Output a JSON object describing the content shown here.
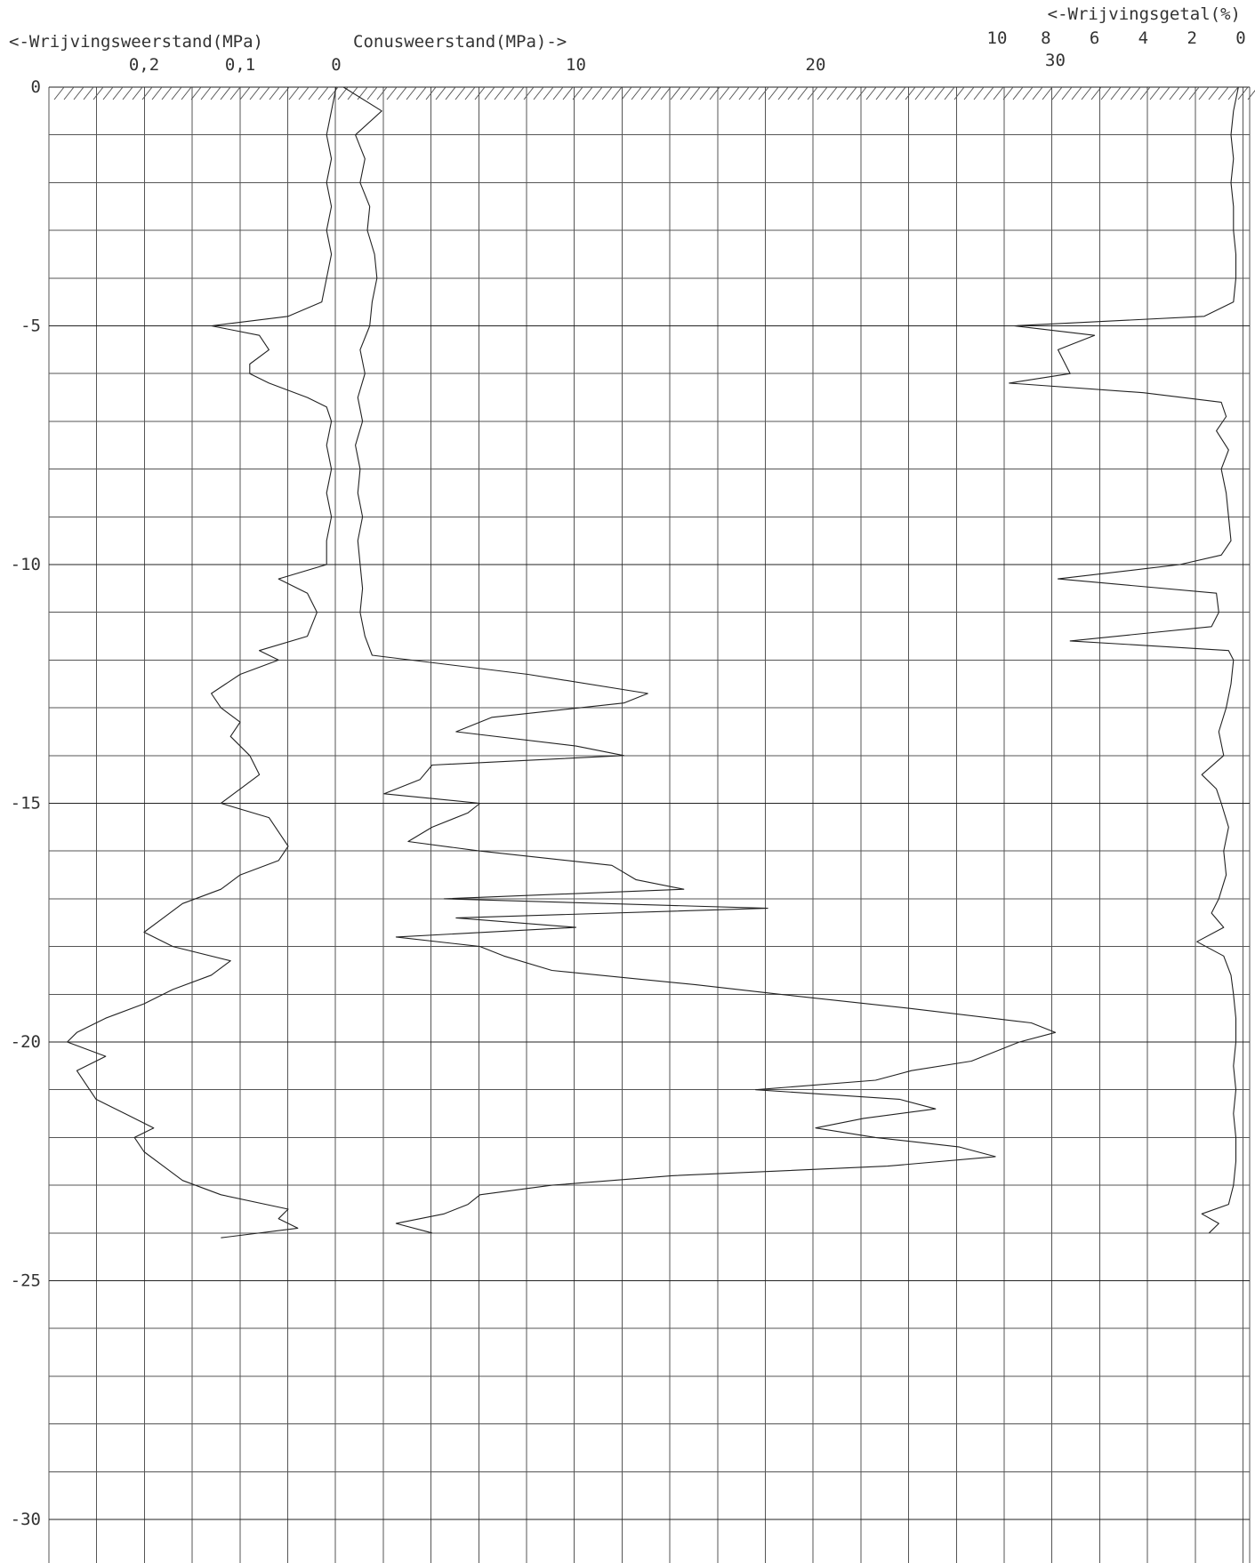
{
  "chart_data": {
    "type": "line",
    "grid": true,
    "headers": {
      "friction": "<-Wrijvingsweerstand(MPa)",
      "cone": "Conusweerstand(MPa)->",
      "ratio": "<-Wrijvingsgetal(%)"
    },
    "depth_axis": {
      "range": [
        0,
        -31
      ],
      "ticks": [
        {
          "value": 0,
          "label": "0"
        },
        {
          "value": -5,
          "label": "-5"
        },
        {
          "value": -10,
          "label": "-10"
        },
        {
          "value": -15,
          "label": "-15"
        },
        {
          "value": -20,
          "label": "-20"
        },
        {
          "value": -25,
          "label": "-25"
        },
        {
          "value": -30,
          "label": "-30"
        }
      ]
    },
    "friction_axis": {
      "range": [
        0,
        0.6
      ],
      "reversed": true,
      "ticks": [
        {
          "value": 0.2,
          "label": "0,2"
        },
        {
          "value": 0.1,
          "label": "0,1"
        },
        {
          "value": 0,
          "label": "0"
        }
      ]
    },
    "cone_axis": {
      "range": [
        0,
        38
      ],
      "ticks": [
        {
          "value": 10,
          "label": "10"
        },
        {
          "value": 20,
          "label": "20"
        },
        {
          "value": 30,
          "label": "30"
        }
      ]
    },
    "ratio_axis": {
      "range": [
        0,
        10
      ],
      "reversed": true,
      "ticks": [
        {
          "value": 10,
          "label": "10"
        },
        {
          "value": 8,
          "label": "8"
        },
        {
          "value": 6,
          "label": "6"
        },
        {
          "value": 4,
          "label": "4"
        },
        {
          "value": 2,
          "label": "2"
        },
        {
          "value": 0,
          "label": "0"
        }
      ]
    },
    "series": [
      {
        "key": "cone",
        "x_axis": "cone",
        "depth": [
          0,
          -0.5,
          -1,
          -1.5,
          -2,
          -2.5,
          -3,
          -3.5,
          -4,
          -4.5,
          -5,
          -5.5,
          -6,
          -6.5,
          -7,
          -7.5,
          -8,
          -8.5,
          -9,
          -9.5,
          -10,
          -10.5,
          -11,
          -11.5,
          -11.9,
          -12.3,
          -12.7,
          -12.9,
          -13.2,
          -13.5,
          -13.8,
          -14.0,
          -14.2,
          -14.5,
          -14.8,
          -15.0,
          -15.2,
          -15.5,
          -15.8,
          -16.0,
          -16.3,
          -16.6,
          -16.8,
          -17.0,
          -17.2,
          -17.4,
          -17.6,
          -17.8,
          -18.0,
          -18.2,
          -18.5,
          -18.8,
          -19.0,
          -19.3,
          -19.6,
          -19.8,
          -20.0,
          -20.2,
          -20.4,
          -20.6,
          -20.8,
          -21.0,
          -21.2,
          -21.4,
          -21.6,
          -21.8,
          -22.0,
          -22.2,
          -22.4,
          -22.6,
          -22.8,
          -23.0,
          -23.2,
          -23.4,
          -23.6,
          -23.8,
          -24.0
        ],
        "values": [
          0.3,
          1.9,
          0.8,
          1.2,
          1.0,
          1.4,
          1.3,
          1.6,
          1.7,
          1.5,
          1.4,
          1.0,
          1.2,
          0.9,
          1.1,
          0.8,
          1.0,
          0.9,
          1.1,
          0.9,
          1.0,
          1.1,
          1.0,
          1.2,
          1.5,
          8.0,
          13.0,
          12.0,
          6.5,
          5.0,
          10.0,
          12.0,
          4.0,
          3.5,
          2.0,
          6.0,
          5.5,
          4.0,
          3.0,
          6.0,
          11.5,
          12.5,
          14.5,
          4.5,
          18.0,
          5.0,
          10.0,
          2.5,
          6.0,
          7.0,
          9.0,
          15.0,
          18.5,
          24.0,
          29.0,
          30.0,
          28.5,
          27.5,
          26.5,
          24.0,
          22.5,
          17.5,
          23.5,
          25.0,
          22.0,
          20.0,
          22.5,
          26.0,
          27.5,
          23.0,
          14.0,
          9.0,
          6.0,
          5.5,
          4.5,
          2.5,
          4.0
        ]
      },
      {
        "key": "friction",
        "x_axis": "friction",
        "depth": [
          0,
          -0.5,
          -1,
          -1.5,
          -2,
          -2.5,
          -3,
          -3.5,
          -4,
          -4.5,
          -4.8,
          -5.0,
          -5.2,
          -5.5,
          -5.8,
          -6.0,
          -6.2,
          -6.5,
          -6.7,
          -7.0,
          -7.5,
          -8,
          -8.5,
          -9,
          -9.5,
          -10,
          -10.3,
          -10.6,
          -11.0,
          -11.5,
          -11.8,
          -12.0,
          -12.3,
          -12.7,
          -13.0,
          -13.3,
          -13.6,
          -14.0,
          -14.4,
          -14.7,
          -15.0,
          -15.3,
          -15.6,
          -15.9,
          -16.2,
          -16.5,
          -16.8,
          -17.1,
          -17.4,
          -17.7,
          -18.0,
          -18.3,
          -18.6,
          -18.9,
          -19.2,
          -19.5,
          -19.8,
          -20.0,
          -20.3,
          -20.6,
          -20.9,
          -21.2,
          -21.5,
          -21.8,
          -22.0,
          -22.3,
          -22.6,
          -22.9,
          -23.2,
          -23.5,
          -23.7,
          -23.9,
          -24.1
        ],
        "values": [
          0.0,
          0.005,
          0.01,
          0.005,
          0.01,
          0.005,
          0.01,
          0.005,
          0.01,
          0.015,
          0.05,
          0.13,
          0.08,
          0.07,
          0.09,
          0.09,
          0.07,
          0.03,
          0.01,
          0.005,
          0.01,
          0.005,
          0.01,
          0.005,
          0.01,
          0.01,
          0.06,
          0.03,
          0.02,
          0.03,
          0.08,
          0.06,
          0.1,
          0.13,
          0.12,
          0.1,
          0.11,
          0.09,
          0.08,
          0.1,
          0.12,
          0.07,
          0.06,
          0.05,
          0.06,
          0.1,
          0.12,
          0.16,
          0.18,
          0.2,
          0.17,
          0.11,
          0.13,
          0.17,
          0.2,
          0.24,
          0.27,
          0.28,
          0.24,
          0.27,
          0.26,
          0.25,
          0.22,
          0.19,
          0.21,
          0.2,
          0.18,
          0.16,
          0.12,
          0.05,
          0.06,
          0.04,
          0.12
        ]
      },
      {
        "key": "ratio",
        "x_axis": "ratio",
        "depth": [
          0,
          -0.5,
          -1,
          -1.5,
          -2,
          -2.5,
          -3,
          -3.5,
          -4,
          -4.5,
          -4.8,
          -5.0,
          -5.2,
          -5.5,
          -5.8,
          -6.0,
          -6.2,
          -6.4,
          -6.6,
          -6.9,
          -7.2,
          -7.6,
          -8.0,
          -8.5,
          -9.0,
          -9.5,
          -9.8,
          -10.0,
          -10.3,
          -10.6,
          -11.0,
          -11.3,
          -11.6,
          -11.8,
          -12.0,
          -12.5,
          -13.0,
          -13.5,
          -14.0,
          -14.4,
          -14.7,
          -15.0,
          -15.5,
          -16.0,
          -16.5,
          -17.0,
          -17.3,
          -17.6,
          -17.9,
          -18.2,
          -18.6,
          -19.0,
          -19.5,
          -20.0,
          -20.5,
          -21.0,
          -21.5,
          -22.0,
          -22.5,
          -23.0,
          -23.4,
          -23.6,
          -23.8,
          -24.0
        ],
        "values": [
          0.1,
          0.3,
          0.4,
          0.3,
          0.4,
          0.3,
          0.3,
          0.2,
          0.2,
          0.3,
          1.5,
          9.3,
          6.0,
          7.5,
          7.2,
          7.0,
          9.5,
          4.0,
          0.8,
          0.6,
          1.0,
          0.5,
          0.8,
          0.6,
          0.5,
          0.4,
          0.8,
          2.5,
          7.5,
          1.0,
          0.9,
          1.2,
          7.0,
          0.5,
          0.3,
          0.4,
          0.6,
          0.9,
          0.7,
          1.6,
          1.0,
          0.8,
          0.5,
          0.7,
          0.6,
          0.9,
          1.2,
          0.7,
          1.8,
          0.7,
          0.4,
          0.3,
          0.2,
          0.2,
          0.3,
          0.2,
          0.3,
          0.2,
          0.2,
          0.3,
          0.5,
          1.6,
          0.9,
          1.3
        ]
      }
    ]
  }
}
